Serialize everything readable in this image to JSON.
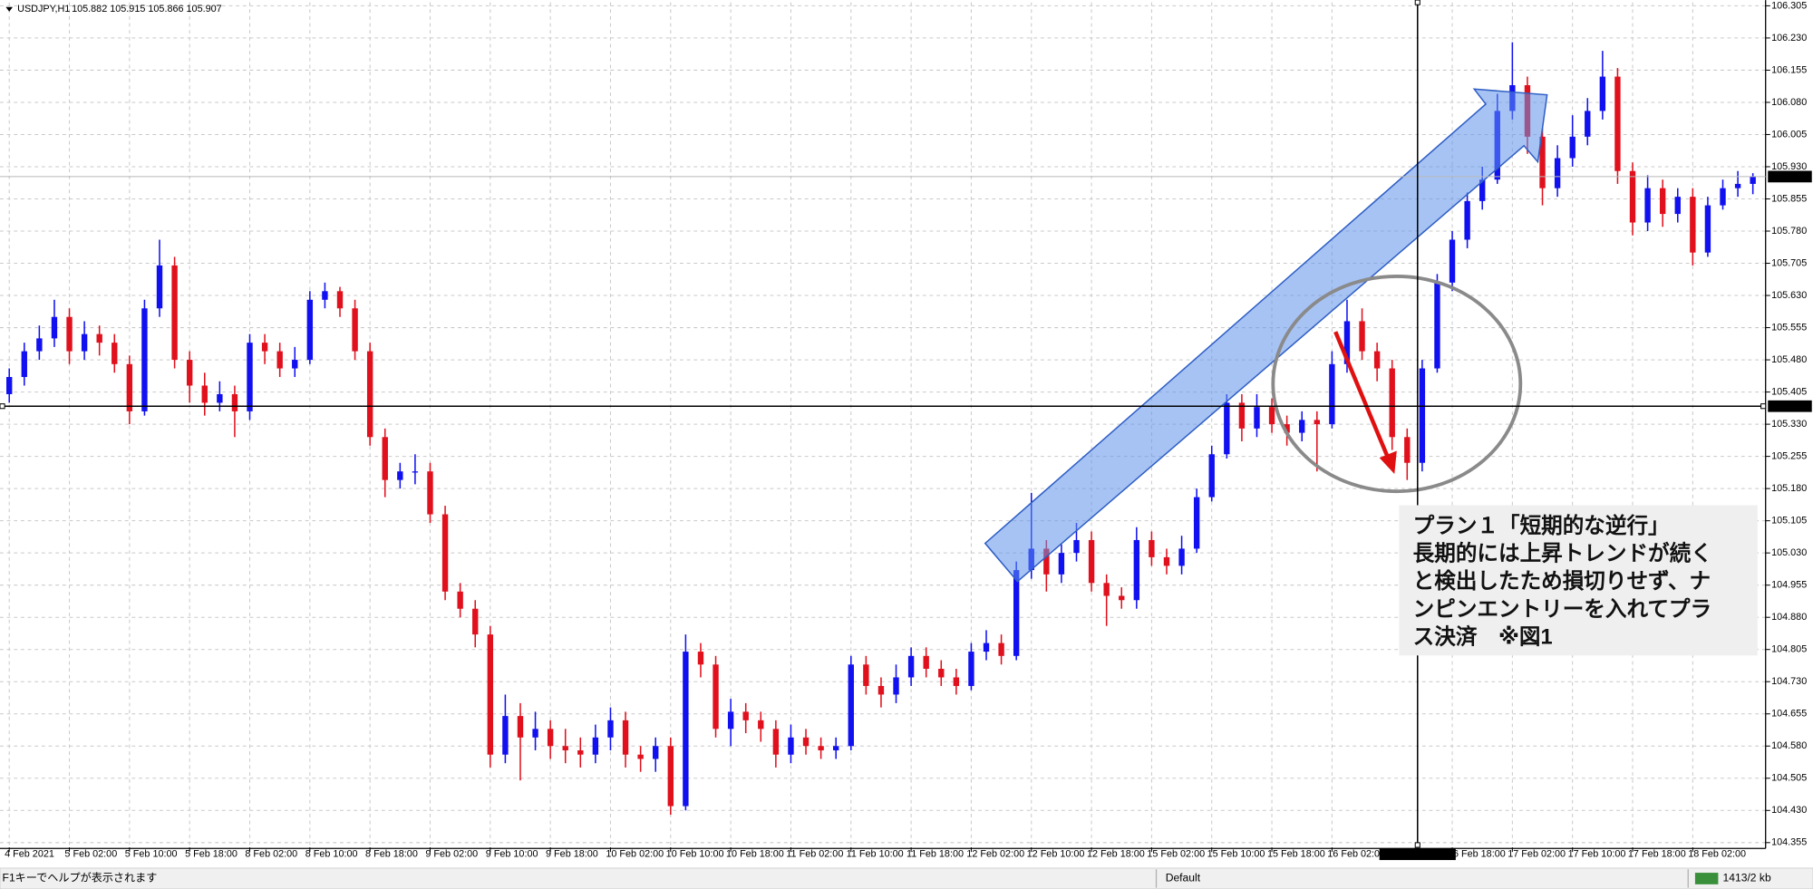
{
  "chart_data": {
    "type": "candlestick",
    "symbol": "USDJPY,H1",
    "quote": "105.882 105.915 105.866 105.907",
    "categories": [
      "4 Feb 2021",
      null,
      null,
      null,
      "5 Feb 02:00",
      null,
      null,
      null,
      "5 Feb 10:00",
      null,
      null,
      null,
      "5 Feb 18:00",
      null,
      null,
      null,
      "8 Feb 02:00",
      null,
      null,
      null,
      "8 Feb 10:00",
      null,
      null,
      null,
      "8 Feb 18:00",
      null,
      null,
      null,
      "9 Feb 02:00",
      null,
      null,
      null,
      "9 Feb 10:00",
      null,
      null,
      null,
      "9 Feb 18:00",
      null,
      null,
      null,
      "10 Feb 02:00",
      null,
      null,
      null,
      "10 Feb 10:00",
      null,
      null,
      null,
      "10 Feb 18:00",
      null,
      null,
      null,
      "11 Feb 02:00",
      null,
      null,
      null,
      "11 Feb 10:00",
      null,
      null,
      null,
      "11 Feb 18:00",
      null,
      null,
      null,
      "12 Feb 02:00",
      null,
      null,
      null,
      "12 Feb 10:00",
      null,
      null,
      null,
      "12 Feb 18:00",
      null,
      null,
      null,
      "15 Feb 02:00",
      null,
      null,
      null,
      "15 Feb 10:00",
      null,
      null,
      null,
      "15 Feb 18:00",
      null,
      null,
      null,
      "16 Feb 02:00",
      null,
      null,
      null,
      null,
      null,
      null,
      null,
      "16 Feb 18:00",
      null,
      null,
      null,
      "17 Feb 02:00",
      null,
      null,
      null,
      "17 Feb 10:00",
      null,
      null,
      null,
      "17 Feb 18:00",
      null,
      null,
      null,
      "18 Feb 02:00",
      null,
      null,
      null,
      null
    ],
    "open": [
      105.4,
      105.44,
      105.5,
      105.53,
      105.58,
      105.5,
      105.54,
      105.52,
      105.47,
      105.36,
      105.6,
      105.7,
      105.48,
      105.42,
      105.38,
      105.4,
      105.36,
      105.52,
      105.5,
      105.46,
      105.48,
      105.62,
      105.64,
      105.6,
      105.5,
      105.3,
      105.2,
      105.22,
      105.22,
      105.12,
      104.94,
      104.9,
      104.84,
      104.56,
      104.65,
      104.6,
      104.62,
      104.58,
      104.57,
      104.56,
      104.6,
      104.64,
      104.56,
      104.55,
      104.58,
      104.44,
      104.8,
      104.77,
      104.62,
      104.66,
      104.64,
      104.62,
      104.56,
      104.6,
      104.58,
      104.57,
      104.58,
      104.77,
      104.72,
      104.7,
      104.74,
      104.79,
      104.76,
      104.74,
      104.72,
      104.8,
      104.82,
      104.79,
      104.99,
      105.04,
      104.98,
      105.03,
      105.06,
      104.96,
      104.93,
      104.92,
      105.06,
      105.02,
      105.0,
      105.04,
      105.16,
      105.26,
      105.38,
      105.32,
      105.37,
      105.33,
      105.31,
      105.34,
      105.33,
      105.47,
      105.57,
      105.5,
      105.46,
      105.3,
      105.24,
      105.46,
      105.66,
      105.76,
      105.85,
      105.9,
      106.06,
      106.12,
      106.0,
      105.88,
      105.95,
      106.0,
      106.06,
      106.14,
      105.92,
      105.8,
      105.88,
      105.82,
      105.86,
      105.73,
      105.84,
      105.88,
      105.89
    ],
    "high": [
      105.46,
      105.52,
      105.56,
      105.62,
      105.6,
      105.57,
      105.56,
      105.54,
      105.49,
      105.62,
      105.76,
      105.72,
      105.5,
      105.45,
      105.43,
      105.42,
      105.54,
      105.54,
      105.52,
      105.51,
      105.64,
      105.66,
      105.65,
      105.62,
      105.52,
      105.32,
      105.24,
      105.26,
      105.24,
      105.14,
      104.96,
      104.92,
      104.86,
      104.7,
      104.68,
      104.66,
      104.64,
      104.62,
      104.6,
      104.63,
      104.67,
      104.66,
      104.58,
      104.6,
      104.6,
      104.84,
      104.82,
      104.79,
      104.69,
      104.68,
      104.66,
      104.64,
      104.63,
      104.62,
      104.6,
      104.6,
      104.79,
      104.79,
      104.74,
      104.77,
      104.81,
      104.81,
      104.78,
      104.76,
      104.82,
      104.85,
      104.84,
      105.01,
      105.17,
      105.06,
      105.05,
      105.1,
      105.08,
      104.98,
      104.95,
      105.09,
      105.08,
      105.04,
      105.07,
      105.18,
      105.28,
      105.4,
      105.4,
      105.4,
      105.39,
      105.35,
      105.36,
      105.36,
      105.5,
      105.62,
      105.6,
      105.52,
      105.48,
      105.32,
      105.48,
      105.68,
      105.78,
      105.87,
      105.93,
      106.1,
      106.22,
      106.14,
      106.02,
      105.98,
      106.05,
      106.09,
      106.2,
      106.16,
      105.94,
      105.91,
      105.9,
      105.88,
      105.88,
      105.86,
      105.9,
      105.92,
      105.915
    ],
    "low": [
      105.38,
      105.42,
      105.48,
      105.51,
      105.47,
      105.48,
      105.49,
      105.45,
      105.33,
      105.35,
      105.58,
      105.46,
      105.38,
      105.35,
      105.36,
      105.3,
      105.34,
      105.47,
      105.44,
      105.44,
      105.47,
      105.6,
      105.58,
      105.48,
      105.28,
      105.16,
      105.18,
      105.19,
      105.1,
      104.92,
      104.88,
      104.81,
      104.53,
      104.54,
      104.5,
      104.57,
      104.55,
      104.54,
      104.53,
      104.54,
      104.57,
      104.53,
      104.52,
      104.52,
      104.42,
      104.43,
      104.74,
      104.6,
      104.58,
      104.61,
      104.59,
      104.53,
      104.54,
      104.56,
      104.55,
      104.55,
      104.57,
      104.7,
      104.67,
      104.68,
      104.72,
      104.74,
      104.72,
      104.7,
      104.71,
      104.78,
      104.77,
      104.78,
      104.97,
      104.94,
      104.96,
      105.01,
      104.94,
      104.86,
      104.9,
      104.9,
      105.0,
      104.98,
      104.98,
      105.03,
      105.15,
      105.25,
      105.29,
      105.3,
      105.31,
      105.28,
      105.29,
      105.22,
      105.32,
      105.45,
      105.48,
      105.43,
      105.27,
      105.2,
      105.22,
      105.45,
      105.64,
      105.74,
      105.83,
      105.89,
      106.04,
      105.96,
      105.84,
      105.86,
      105.93,
      105.98,
      106.04,
      105.89,
      105.77,
      105.78,
      105.79,
      105.8,
      105.7,
      105.72,
      105.83,
      105.86,
      105.866
    ],
    "close": [
      105.44,
      105.5,
      105.53,
      105.58,
      105.5,
      105.54,
      105.52,
      105.47,
      105.36,
      105.6,
      105.7,
      105.48,
      105.42,
      105.38,
      105.4,
      105.36,
      105.52,
      105.5,
      105.46,
      105.48,
      105.62,
      105.64,
      105.6,
      105.5,
      105.3,
      105.2,
      105.22,
      105.22,
      105.12,
      104.94,
      104.9,
      104.84,
      104.56,
      104.65,
      104.6,
      104.62,
      104.58,
      104.57,
      104.56,
      104.6,
      104.64,
      104.56,
      104.55,
      104.58,
      104.44,
      104.8,
      104.77,
      104.62,
      104.66,
      104.64,
      104.62,
      104.56,
      104.6,
      104.58,
      104.57,
      104.58,
      104.77,
      104.72,
      104.7,
      104.74,
      104.79,
      104.76,
      104.74,
      104.72,
      104.8,
      104.82,
      104.79,
      104.99,
      105.04,
      104.98,
      105.03,
      105.06,
      104.96,
      104.93,
      104.92,
      105.06,
      105.02,
      105.0,
      105.04,
      105.16,
      105.26,
      105.38,
      105.32,
      105.37,
      105.33,
      105.31,
      105.34,
      105.33,
      105.47,
      105.57,
      105.5,
      105.46,
      105.3,
      105.24,
      105.46,
      105.66,
      105.76,
      105.85,
      105.9,
      106.06,
      106.12,
      106.0,
      105.88,
      105.95,
      106.0,
      106.06,
      106.14,
      105.92,
      105.8,
      105.88,
      105.82,
      105.86,
      105.73,
      105.84,
      105.88,
      105.89,
      105.907
    ],
    "up_color": "#1010f0",
    "down_color": "#e0101c",
    "ylim": [
      104.344,
      106.313
    ],
    "yticks": [
      106.305,
      {
        "value": 106.23,
        "label": "106.230"
      },
      106.155,
      {
        "value": 106.08,
        "label": "106.080"
      },
      106.005,
      {
        "value": 105.93,
        "label": "105.930"
      },
      105.855,
      {
        "value": 105.78,
        "label": "105.780"
      },
      105.705,
      {
        "value": 105.63,
        "label": "105.630"
      },
      105.555,
      {
        "value": 105.48,
        "label": "105.480"
      },
      105.405,
      {
        "value": 105.33,
        "label": "105.330"
      },
      105.255,
      {
        "value": 105.18,
        "label": "105.180"
      },
      105.105,
      {
        "value": 105.03,
        "label": "105.030"
      },
      104.955,
      {
        "value": 104.88,
        "label": "104.880"
      },
      104.805,
      {
        "value": 104.73,
        "label": "104.730"
      },
      104.655,
      {
        "value": 104.58,
        "label": "104.580"
      },
      104.505,
      {
        "value": 104.43,
        "label": "104.430"
      },
      104.355
    ],
    "grid": true,
    "last_price": 105.907,
    "crosshair": {
      "price": 105.372,
      "time": "2021.02.16 13:00"
    }
  },
  "annotation": {
    "lines": [
      "プラン１「短期的な逆行」",
      "長期的には上昇トレンドが続く",
      "と検出したため損切りせず、ナ",
      "ンピンエントリーを入れてプラ",
      "ス決済　※図1"
    ]
  },
  "status_bar": {
    "help": "F1キーでヘルプが表示されます",
    "profile": "Default",
    "traffic": "1413/2 kb"
  }
}
